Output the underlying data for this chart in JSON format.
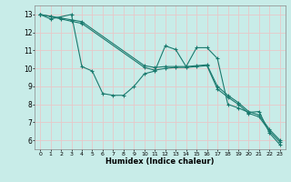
{
  "xlabel": "Humidex (Indice chaleur)",
  "background_color": "#c8ece8",
  "grid_color": "#e8c8c8",
  "line_color": "#1a7a6e",
  "xlim": [
    -0.5,
    23.5
  ],
  "ylim": [
    5.5,
    13.5
  ],
  "xticks": [
    0,
    1,
    2,
    3,
    4,
    5,
    6,
    7,
    8,
    9,
    10,
    11,
    12,
    13,
    14,
    15,
    16,
    17,
    18,
    19,
    20,
    21,
    22,
    23
  ],
  "yticks": [
    6,
    7,
    8,
    9,
    10,
    11,
    12,
    13
  ],
  "line1_x": [
    0,
    1,
    3,
    4,
    5,
    6,
    7,
    8,
    9,
    10,
    11,
    12,
    13,
    14,
    15,
    16,
    17,
    18,
    19,
    20,
    21,
    22,
    23
  ],
  "line1_y": [
    13.0,
    12.75,
    13.0,
    10.1,
    9.85,
    8.6,
    8.5,
    8.5,
    9.0,
    9.7,
    9.85,
    11.25,
    11.05,
    10.1,
    11.15,
    11.15,
    10.55,
    8.0,
    7.8,
    7.55,
    7.6,
    6.4,
    5.75
  ],
  "line2_x": [
    0,
    1,
    2,
    3,
    4,
    10,
    11,
    12,
    13,
    14,
    15,
    16,
    17,
    18,
    19,
    20,
    21,
    22,
    23
  ],
  "line2_y": [
    13.0,
    12.88,
    12.75,
    12.62,
    12.5,
    10.05,
    9.9,
    10.0,
    10.05,
    10.05,
    10.1,
    10.15,
    8.85,
    8.4,
    8.0,
    7.5,
    7.3,
    6.5,
    5.9
  ],
  "line3_x": [
    0,
    1,
    2,
    3,
    4,
    10,
    11,
    12,
    13,
    14,
    15,
    16,
    17,
    18,
    19,
    20,
    21,
    22,
    23
  ],
  "line3_y": [
    13.0,
    12.9,
    12.8,
    12.7,
    12.6,
    10.15,
    10.05,
    10.1,
    10.1,
    10.1,
    10.15,
    10.2,
    9.0,
    8.5,
    8.1,
    7.6,
    7.4,
    6.6,
    6.0
  ]
}
